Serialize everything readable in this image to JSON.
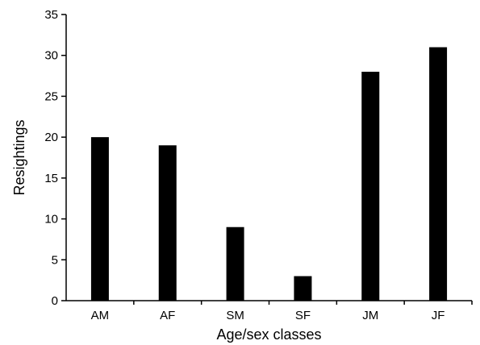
{
  "chart_data": {
    "type": "bar",
    "categories": [
      "AM",
      "AF",
      "SM",
      "SF",
      "JM",
      "JF"
    ],
    "values": [
      20,
      19,
      9,
      3,
      28,
      31
    ],
    "xlabel": "Age/sex classes",
    "ylabel": "Resightings",
    "ylim": [
      0,
      35
    ],
    "yticks": [
      0,
      5,
      10,
      15,
      20,
      25,
      30,
      35
    ],
    "grid": false,
    "legend": "none",
    "bar_color": "#000000"
  }
}
